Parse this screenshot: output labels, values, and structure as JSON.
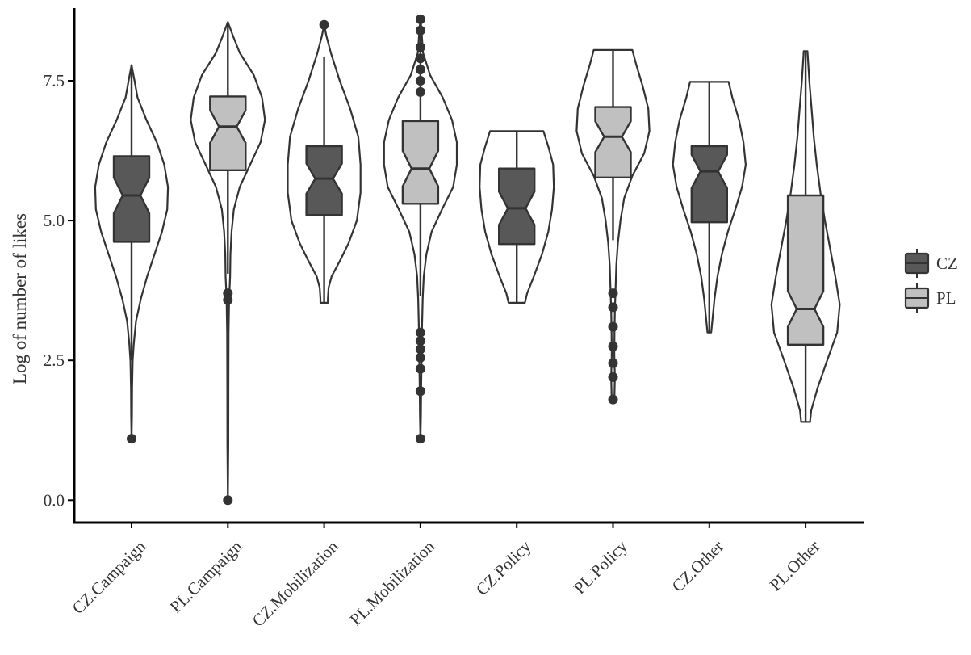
{
  "chart_data": {
    "type": "violin",
    "ylabel": "Log of number of likes",
    "xlabel": "",
    "ylim": [
      -0.4,
      8.8
    ],
    "yticks": [
      0.0,
      2.5,
      5.0,
      7.5
    ],
    "ytick_labels": [
      "0.0",
      "2.5",
      "5.0",
      "7.5"
    ],
    "categories": [
      "CZ.Campaign",
      "PL.Campaign",
      "CZ.Mobilization",
      "PL.Mobilization",
      "CZ.Policy",
      "PL.Policy",
      "CZ.Other",
      "PL.Other"
    ],
    "legend": {
      "placement": "right",
      "entries": [
        {
          "label": "CZ",
          "color": "#585858"
        },
        {
          "label": "PL",
          "color": "#c0c0c0"
        }
      ]
    },
    "colors": {
      "CZ": "#585858",
      "PL": "#c0c0c0",
      "outline": "#333333"
    },
    "series": [
      {
        "category": "CZ.Campaign",
        "group": "CZ",
        "min": 1.1,
        "q1": 4.62,
        "median": 5.45,
        "q3": 6.15,
        "max": 7.78,
        "whisker_low": 2.5,
        "whisker_high": 7.78,
        "outliers": [
          1.1
        ],
        "violin": [
          [
            7.78,
            0
          ],
          [
            7.5,
            0.08
          ],
          [
            7.2,
            0.16
          ],
          [
            6.8,
            0.4
          ],
          [
            6.4,
            0.68
          ],
          [
            6.0,
            0.88
          ],
          [
            5.6,
            0.98
          ],
          [
            5.2,
            0.96
          ],
          [
            4.8,
            0.82
          ],
          [
            4.4,
            0.62
          ],
          [
            4.0,
            0.42
          ],
          [
            3.6,
            0.25
          ],
          [
            3.2,
            0.12
          ],
          [
            2.8,
            0.06
          ],
          [
            2.5,
            0.03
          ],
          [
            2.0,
            0.015
          ],
          [
            1.5,
            0.01
          ],
          [
            1.1,
            0
          ]
        ]
      },
      {
        "category": "PL.Campaign",
        "group": "PL",
        "min": 0.0,
        "q1": 5.9,
        "median": 6.68,
        "q3": 7.22,
        "max": 8.55,
        "whisker_low": 4.05,
        "whisker_high": 8.55,
        "outliers": [
          3.7,
          3.58,
          0.0
        ],
        "violin": [
          [
            8.55,
            0
          ],
          [
            8.3,
            0.14
          ],
          [
            8.0,
            0.32
          ],
          [
            7.6,
            0.7
          ],
          [
            7.2,
            0.92
          ],
          [
            6.8,
            1.0
          ],
          [
            6.4,
            0.88
          ],
          [
            6.0,
            0.6
          ],
          [
            5.6,
            0.32
          ],
          [
            5.2,
            0.16
          ],
          [
            4.8,
            0.1
          ],
          [
            4.4,
            0.07
          ],
          [
            4.0,
            0.06
          ],
          [
            3.6,
            0.035
          ],
          [
            3.0,
            0.02
          ],
          [
            2.0,
            0.015
          ],
          [
            1.0,
            0.012
          ],
          [
            0.0,
            0
          ]
        ]
      },
      {
        "category": "CZ.Mobilization",
        "group": "CZ",
        "min": 3.53,
        "q1": 5.1,
        "median": 5.75,
        "q3": 6.33,
        "max": 8.5,
        "whisker_low": 3.53,
        "whisker_high": 7.93,
        "outliers": [
          8.5
        ],
        "violin": [
          [
            8.5,
            0
          ],
          [
            8.3,
            0.06
          ],
          [
            8.0,
            0.18
          ],
          [
            7.5,
            0.42
          ],
          [
            7.0,
            0.7
          ],
          [
            6.5,
            0.92
          ],
          [
            6.0,
            0.98
          ],
          [
            5.5,
            0.98
          ],
          [
            5.0,
            0.88
          ],
          [
            4.6,
            0.66
          ],
          [
            4.3,
            0.44
          ],
          [
            4.0,
            0.2
          ],
          [
            3.8,
            0.12
          ],
          [
            3.6,
            0.1
          ],
          [
            3.53,
            0.1
          ]
        ]
      },
      {
        "category": "PL.Mobilization",
        "group": "PL",
        "min": 1.1,
        "q1": 5.3,
        "median": 5.93,
        "q3": 6.78,
        "max": 8.63,
        "whisker_low": 3.65,
        "whisker_high": 8.63,
        "outliers": [
          8.6,
          8.4,
          8.1,
          7.9,
          7.7,
          7.5,
          7.3,
          3.0,
          2.85,
          2.7,
          2.55,
          2.35,
          1.95,
          1.1
        ],
        "violin": [
          [
            8.63,
            0
          ],
          [
            8.3,
            0.04
          ],
          [
            8.0,
            0.07
          ],
          [
            7.6,
            0.26
          ],
          [
            7.2,
            0.6
          ],
          [
            6.8,
            0.85
          ],
          [
            6.4,
            0.98
          ],
          [
            6.0,
            0.98
          ],
          [
            5.6,
            0.88
          ],
          [
            5.2,
            0.58
          ],
          [
            4.8,
            0.3
          ],
          [
            4.4,
            0.16
          ],
          [
            4.0,
            0.09
          ],
          [
            3.6,
            0.06
          ],
          [
            3.0,
            0.04
          ],
          [
            2.5,
            0.03
          ],
          [
            2.0,
            0.02
          ],
          [
            1.5,
            0.012
          ],
          [
            1.1,
            0
          ]
        ]
      },
      {
        "category": "CZ.Policy",
        "group": "CZ",
        "min": 3.53,
        "q1": 4.58,
        "median": 5.22,
        "q3": 5.93,
        "max": 6.6,
        "whisker_low": 3.53,
        "whisker_high": 6.6,
        "outliers": [],
        "violin": [
          [
            6.6,
            0.72
          ],
          [
            6.3,
            0.86
          ],
          [
            6.0,
            0.98
          ],
          [
            5.6,
            1.0
          ],
          [
            5.2,
            0.95
          ],
          [
            4.8,
            0.85
          ],
          [
            4.4,
            0.68
          ],
          [
            4.0,
            0.46
          ],
          [
            3.7,
            0.28
          ],
          [
            3.53,
            0.22
          ]
        ]
      },
      {
        "category": "PL.Policy",
        "group": "PL",
        "min": 1.8,
        "q1": 5.77,
        "median": 6.5,
        "q3": 7.03,
        "max": 8.05,
        "whisker_low": 4.65,
        "whisker_high": 8.05,
        "outliers": [
          3.7,
          3.45,
          3.1,
          2.75,
          2.45,
          2.2,
          1.8
        ],
        "violin": [
          [
            8.05,
            0.52
          ],
          [
            7.8,
            0.62
          ],
          [
            7.4,
            0.8
          ],
          [
            7.0,
            0.95
          ],
          [
            6.6,
            0.98
          ],
          [
            6.2,
            0.84
          ],
          [
            5.8,
            0.52
          ],
          [
            5.4,
            0.3
          ],
          [
            5.0,
            0.2
          ],
          [
            4.6,
            0.13
          ],
          [
            4.2,
            0.09
          ],
          [
            3.8,
            0.07
          ],
          [
            3.4,
            0.05
          ],
          [
            3.0,
            0.04
          ],
          [
            2.6,
            0.035
          ],
          [
            2.2,
            0.05
          ],
          [
            1.9,
            0.04
          ],
          [
            1.8,
            0.035
          ]
        ]
      },
      {
        "category": "CZ.Other",
        "group": "CZ",
        "min": 3.0,
        "q1": 4.97,
        "median": 5.88,
        "q3": 6.33,
        "max": 7.48,
        "whisker_low": 3.0,
        "whisker_high": 7.48,
        "outliers": [],
        "violin": [
          [
            7.48,
            0.52
          ],
          [
            7.2,
            0.62
          ],
          [
            6.8,
            0.8
          ],
          [
            6.4,
            0.92
          ],
          [
            6.0,
            0.98
          ],
          [
            5.6,
            0.88
          ],
          [
            5.2,
            0.7
          ],
          [
            4.8,
            0.5
          ],
          [
            4.4,
            0.34
          ],
          [
            4.0,
            0.22
          ],
          [
            3.6,
            0.14
          ],
          [
            3.2,
            0.08
          ],
          [
            3.0,
            0.05
          ]
        ]
      },
      {
        "category": "PL.Other",
        "group": "PL",
        "min": 1.4,
        "q1": 2.78,
        "median": 3.42,
        "q3": 5.45,
        "max": 8.03,
        "whisker_low": 1.4,
        "whisker_high": 8.03,
        "outliers": [],
        "violin": [
          [
            8.03,
            0.05
          ],
          [
            7.5,
            0.1
          ],
          [
            7.0,
            0.16
          ],
          [
            6.5,
            0.22
          ],
          [
            6.0,
            0.3
          ],
          [
            5.5,
            0.4
          ],
          [
            5.0,
            0.52
          ],
          [
            4.5,
            0.66
          ],
          [
            4.0,
            0.8
          ],
          [
            3.5,
            0.92
          ],
          [
            3.0,
            0.85
          ],
          [
            2.5,
            0.58
          ],
          [
            2.0,
            0.32
          ],
          [
            1.6,
            0.15
          ],
          [
            1.4,
            0.12
          ]
        ]
      }
    ]
  }
}
